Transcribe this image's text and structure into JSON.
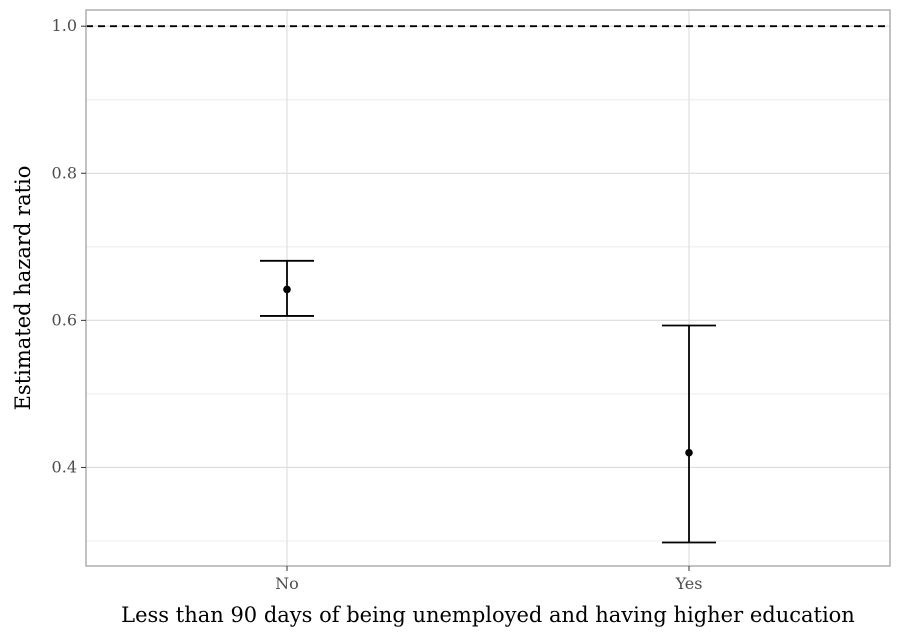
{
  "chart_data": {
    "type": "errorbar",
    "title": "",
    "xlabel": "Less than 90 days of being unemployed and having higher education",
    "ylabel": "Estimated hazard ratio",
    "categories": [
      "No",
      "Yes"
    ],
    "estimates": [
      0.642,
      0.42
    ],
    "lower": [
      0.606,
      0.298
    ],
    "upper": [
      0.681,
      0.593
    ],
    "ylim": [
      0.266,
      1.022
    ],
    "yticks": [
      0.4,
      0.6,
      0.8,
      1.0
    ],
    "ytick_labels": [
      "0.4",
      "0.6",
      "0.8",
      "1.0"
    ],
    "reference_line": 1.0,
    "grid": true,
    "legend": "none",
    "colors": {
      "panel_border": "#b3b3b3",
      "grid_major": "#dcdcdc",
      "grid_minor": "#ececec",
      "marks": "#000000",
      "tick_text": "#4d4d4d"
    }
  }
}
